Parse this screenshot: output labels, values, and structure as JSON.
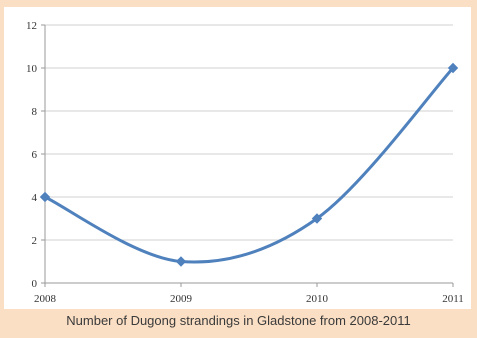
{
  "caption": "Number of Dugong strandings in Gladstone from 2008-2011",
  "colors": {
    "background": "#fbdfc4",
    "panel": "#ffffff",
    "series_line": "#4f81bd",
    "grid": "#d0d0d0",
    "axis": "#9a9a9a"
  },
  "chart_data": {
    "type": "line",
    "title": "",
    "xlabel": "",
    "ylabel": "",
    "categories": [
      "2008",
      "2009",
      "2010",
      "2011"
    ],
    "series": [
      {
        "values": [
          4,
          1,
          3,
          10
        ]
      }
    ],
    "ylim": [
      0,
      12
    ],
    "yticks": [
      "0",
      "2",
      "4",
      "6",
      "8",
      "10",
      "12"
    ],
    "grid": true,
    "legend": "none",
    "smooth": true,
    "marker": "diamond"
  }
}
